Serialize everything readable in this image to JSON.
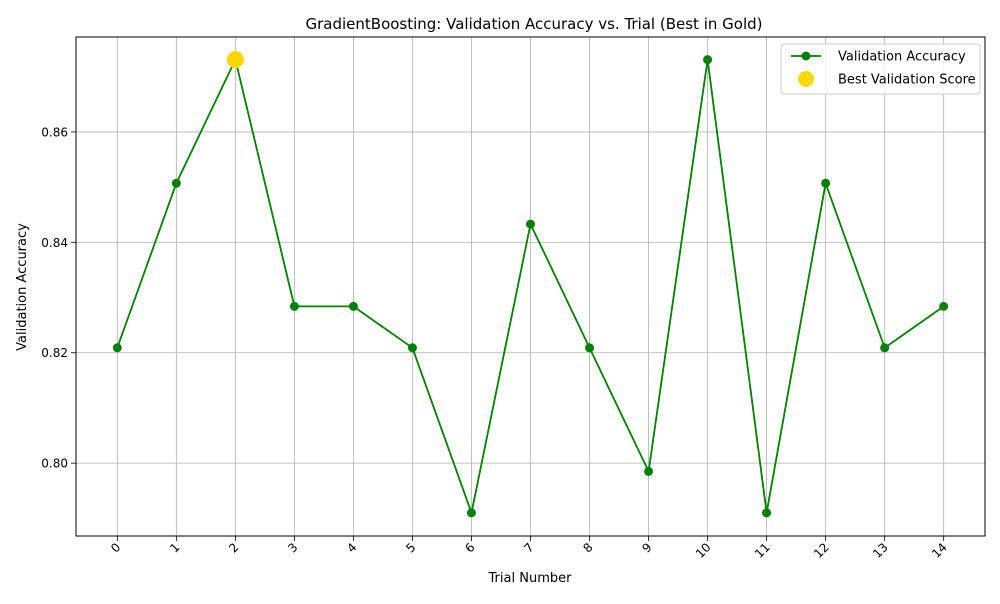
{
  "chart_data": {
    "type": "line",
    "title": "GradientBoosting: Validation Accuracy vs. Trial (Best in Gold)",
    "xlabel": "Trial Number",
    "ylabel": "Validation Accuracy",
    "x": [
      0,
      1,
      2,
      3,
      4,
      5,
      6,
      7,
      8,
      9,
      10,
      11,
      12,
      13,
      14
    ],
    "x_tick_labels": [
      "0",
      "1",
      "2",
      "3",
      "4",
      "5",
      "6",
      "7",
      "8",
      "9",
      "10",
      "11",
      "12",
      "13",
      "14"
    ],
    "xlim": [
      -0.7,
      14.7
    ],
    "ylim": [
      0.7868,
      0.8772
    ],
    "y_ticks": [
      0.8,
      0.82,
      0.84,
      0.86
    ],
    "y_tick_labels": [
      "0.80",
      "0.82",
      "0.84",
      "0.86"
    ],
    "grid": true,
    "legend_position": "top-right",
    "series": [
      {
        "name": "Validation Accuracy",
        "color": "#008000",
        "marker": "circle",
        "values": [
          0.8209,
          0.8507,
          0.8731,
          0.8284,
          0.8284,
          0.8209,
          0.791,
          0.8433,
          0.8209,
          0.7985,
          0.8731,
          0.791,
          0.8507,
          0.8209,
          0.8284
        ]
      }
    ],
    "highlight": {
      "name": "Best Validation Score",
      "color": "#FFD700",
      "x": 2,
      "y": 0.8731
    }
  }
}
